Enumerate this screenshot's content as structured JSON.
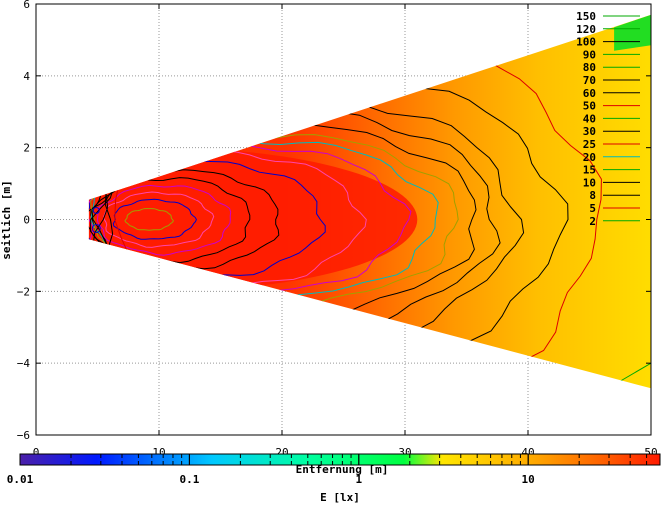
{
  "chart_data": {
    "type": "heatmap",
    "xlabel": "Entfernung [m]",
    "ylabel": "seitlich [m]",
    "x_ticks": [
      "0",
      "10",
      "20",
      "30",
      "40",
      "50"
    ],
    "y_ticks": [
      "6",
      "4",
      "2",
      "0",
      "−2",
      "−4",
      "−6"
    ],
    "xlim": [
      0,
      50
    ],
    "ylim": [
      -6,
      6
    ],
    "grid": true,
    "illuminated_region": {
      "near_x": 4.3,
      "near_half_width": 0.55,
      "far_x": 50,
      "far_top": 5.7,
      "far_bottom": -4.7
    },
    "colorbar": {
      "label": "E [lx]",
      "scale": "log",
      "range": [
        0.01,
        60
      ],
      "tick_labels": [
        "0.01",
        "0.1",
        "1",
        "10"
      ]
    },
    "contour_levels": [
      {
        "value": 150,
        "label": "150",
        "color": "#00aa00"
      },
      {
        "value": 120,
        "label": "120",
        "color": "#00aa00"
      },
      {
        "value": 100,
        "label": "100",
        "color": "#000000"
      },
      {
        "value": 90,
        "label": "90",
        "color": "#00aa00"
      },
      {
        "value": 80,
        "label": "80",
        "color": "#00aa00"
      },
      {
        "value": 70,
        "label": "70",
        "color": "#000000"
      },
      {
        "value": 60,
        "label": "60",
        "color": "#000000"
      },
      {
        "value": 50,
        "label": "50",
        "color": "#dd0000"
      },
      {
        "value": 40,
        "label": "40",
        "color": "#00aa00"
      },
      {
        "value": 30,
        "label": "30",
        "color": "#000000"
      },
      {
        "value": 25,
        "label": "25",
        "color": "#dd0000"
      },
      {
        "value": 20,
        "label": "20",
        "color": "#00bbbb"
      },
      {
        "value": 15,
        "label": "15",
        "color": "#00aa00"
      },
      {
        "value": 10,
        "label": "10",
        "color": "#000000"
      },
      {
        "value": 8,
        "label": "8",
        "color": "#000000"
      },
      {
        "value": 5,
        "label": "5",
        "color": "#dd0000"
      },
      {
        "value": 2,
        "label": "2",
        "color": "#00aa00"
      }
    ],
    "contours": [
      {
        "x": 9.2,
        "rx": 1.9,
        "ry": 0.3,
        "color": "#a0a000"
      },
      {
        "x": 9.6,
        "rx": 3.3,
        "ry": 0.55,
        "color": "#0000cc"
      },
      {
        "x": 9.9,
        "rx": 4.4,
        "ry": 0.75,
        "color": "#ff44aa"
      },
      {
        "x": 10.4,
        "rx": 5.4,
        "ry": 0.95,
        "color": "#cc00cc"
      },
      {
        "x": 11.0,
        "rx": 6.4,
        "ry": 1.15,
        "color": "#000000"
      },
      {
        "x": 12.0,
        "rx": 7.8,
        "ry": 1.35,
        "color": "#000000"
      },
      {
        "x": 13.5,
        "rx": 9.8,
        "ry": 1.6,
        "color": "#0000cc"
      },
      {
        "x": 15.0,
        "rx": 11.4,
        "ry": 1.85,
        "color": "#ff44aa"
      },
      {
        "x": 17.0,
        "rx": 13.0,
        "ry": 2.05,
        "color": "#cc00cc"
      },
      {
        "x": 18.5,
        "rx": 14.0,
        "ry": 2.2,
        "color": "#00bbbb"
      },
      {
        "x": 19.5,
        "rx": 14.8,
        "ry": 2.35,
        "color": "#a0a000"
      },
      {
        "x": 20.5,
        "rx": 15.4,
        "ry": 2.6,
        "color": "#000000"
      },
      {
        "x": 21.2,
        "rx": 16.2,
        "ry": 3.0,
        "color": "#000000"
      },
      {
        "x": 22.0,
        "rx": 17.0,
        "ry": 3.4,
        "color": "#000000"
      },
      {
        "x": 24.0,
        "rx": 18.6,
        "ry": 4.0,
        "color": "#000000"
      },
      {
        "x": 26.0,
        "rx": 19.6,
        "ry": 5.2,
        "color": "#dd0000"
      }
    ],
    "far_green_band": {
      "x_start": 47.0,
      "value_label": "150"
    }
  }
}
